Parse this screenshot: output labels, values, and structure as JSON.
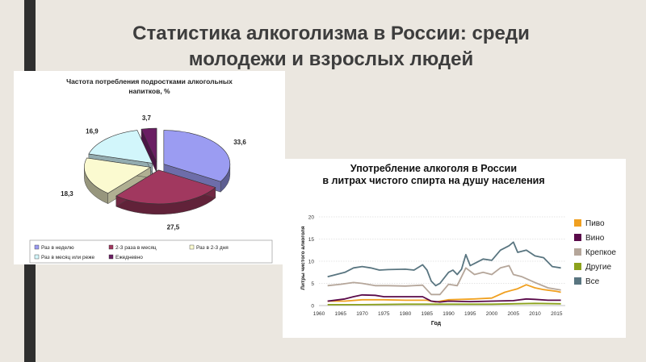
{
  "slide": {
    "title_line1": "Статистика алкоголизма в России: среди",
    "title_line2": "молодежи и взрослых людей"
  },
  "chart_data": [
    {
      "type": "pie",
      "title": "Частота потребления подростками алкогольных напитков, %",
      "legend_position": "bottom",
      "slices": [
        {
          "label": "Раз в неделю",
          "value": 33.6,
          "color": "#9b9cf2"
        },
        {
          "label": "2-3 раза в месяц",
          "value": 27.5,
          "color": "#a1385f"
        },
        {
          "label": "Раз в 2-3 дня",
          "value": 18.3,
          "color": "#fbfad0"
        },
        {
          "label": "Раз в месяц или реже",
          "value": 16.9,
          "color": "#d2f6fb"
        },
        {
          "label": "Ежедневно",
          "value": 3.7,
          "color": "#6a1e63"
        }
      ]
    },
    {
      "type": "line",
      "title_line1": "Употребление алкоголя в России",
      "title_line2": "в литрах чистого спирта на душу населения",
      "xlabel": "Год",
      "ylabel": "Литры чистого алкоголя",
      "xlim": [
        1960,
        2017
      ],
      "ylim": [
        0,
        20
      ],
      "y_ticks": [
        0,
        5,
        10,
        15,
        20
      ],
      "x_ticks": [
        1960,
        1965,
        1970,
        1975,
        1980,
        1985,
        1990,
        1995,
        2000,
        2005,
        2010,
        2015
      ],
      "grid": true,
      "legend_position": "right",
      "series": [
        {
          "name": "Пиво",
          "color": "#f0a020",
          "points": [
            [
              1962,
              1.0
            ],
            [
              1966,
              1.0
            ],
            [
              1970,
              1.3
            ],
            [
              1975,
              1.3
            ],
            [
              1980,
              1.2
            ],
            [
              1985,
              1.2
            ],
            [
              1987,
              0.8
            ],
            [
              1990,
              1.3
            ],
            [
              1993,
              1.4
            ],
            [
              1996,
              1.5
            ],
            [
              2000,
              1.7
            ],
            [
              2003,
              3.0
            ],
            [
              2006,
              3.8
            ],
            [
              2008,
              4.7
            ],
            [
              2010,
              4.0
            ],
            [
              2012,
              3.6
            ],
            [
              2015,
              3.2
            ],
            [
              2016,
              3.0
            ]
          ]
        },
        {
          "name": "Вино",
          "color": "#5a0a4a",
          "points": [
            [
              1962,
              1.0
            ],
            [
              1966,
              1.5
            ],
            [
              1968,
              2.0
            ],
            [
              1970,
              2.4
            ],
            [
              1973,
              2.3
            ],
            [
              1975,
              2.0
            ],
            [
              1980,
              2.0
            ],
            [
              1984,
              2.0
            ],
            [
              1986,
              1.0
            ],
            [
              1988,
              0.8
            ],
            [
              1990,
              1.0
            ],
            [
              1995,
              0.9
            ],
            [
              2000,
              1.0
            ],
            [
              2005,
              1.1
            ],
            [
              2008,
              1.5
            ],
            [
              2010,
              1.4
            ],
            [
              2013,
              1.2
            ],
            [
              2016,
              1.2
            ]
          ]
        },
        {
          "name": "Крепкое",
          "color": "#b5a69a",
          "points": [
            [
              1962,
              4.5
            ],
            [
              1965,
              4.8
            ],
            [
              1968,
              5.2
            ],
            [
              1970,
              5.0
            ],
            [
              1973,
              4.5
            ],
            [
              1976,
              4.5
            ],
            [
              1980,
              4.4
            ],
            [
              1984,
              4.6
            ],
            [
              1986,
              2.5
            ],
            [
              1988,
              2.5
            ],
            [
              1990,
              4.8
            ],
            [
              1992,
              4.5
            ],
            [
              1994,
              8.5
            ],
            [
              1996,
              7.0
            ],
            [
              1998,
              7.5
            ],
            [
              2000,
              7.0
            ],
            [
              2002,
              8.5
            ],
            [
              2004,
              9.0
            ],
            [
              2005,
              7.0
            ],
            [
              2007,
              6.5
            ],
            [
              2010,
              5.2
            ],
            [
              2013,
              4.0
            ],
            [
              2016,
              3.5
            ]
          ]
        },
        {
          "name": "Другие",
          "color": "#8ca21c",
          "points": [
            [
              1962,
              0.2
            ],
            [
              1970,
              0.2
            ],
            [
              1980,
              0.3
            ],
            [
              1990,
              0.3
            ],
            [
              2000,
              0.3
            ],
            [
              2010,
              0.5
            ],
            [
              2016,
              0.4
            ]
          ]
        },
        {
          "name": "Все",
          "color": "#597580",
          "points": [
            [
              1962,
              6.5
            ],
            [
              1964,
              7.0
            ],
            [
              1966,
              7.5
            ],
            [
              1968,
              8.5
            ],
            [
              1970,
              8.8
            ],
            [
              1972,
              8.5
            ],
            [
              1974,
              8.0
            ],
            [
              1976,
              8.1
            ],
            [
              1980,
              8.2
            ],
            [
              1982,
              8.0
            ],
            [
              1984,
              9.2
            ],
            [
              1985,
              8.0
            ],
            [
              1986,
              5.5
            ],
            [
              1987,
              4.5
            ],
            [
              1988,
              5.0
            ],
            [
              1990,
              7.5
            ],
            [
              1991,
              8.0
            ],
            [
              1992,
              7.0
            ],
            [
              1993,
              8.2
            ],
            [
              1994,
              11.5
            ],
            [
              1995,
              9.0
            ],
            [
              1996,
              9.5
            ],
            [
              1998,
              10.5
            ],
            [
              2000,
              10.2
            ],
            [
              2002,
              12.5
            ],
            [
              2004,
              13.5
            ],
            [
              2005,
              14.3
            ],
            [
              2006,
              12.0
            ],
            [
              2008,
              12.5
            ],
            [
              2010,
              11.2
            ],
            [
              2012,
              10.8
            ],
            [
              2014,
              8.8
            ],
            [
              2016,
              8.5
            ]
          ]
        }
      ]
    }
  ]
}
